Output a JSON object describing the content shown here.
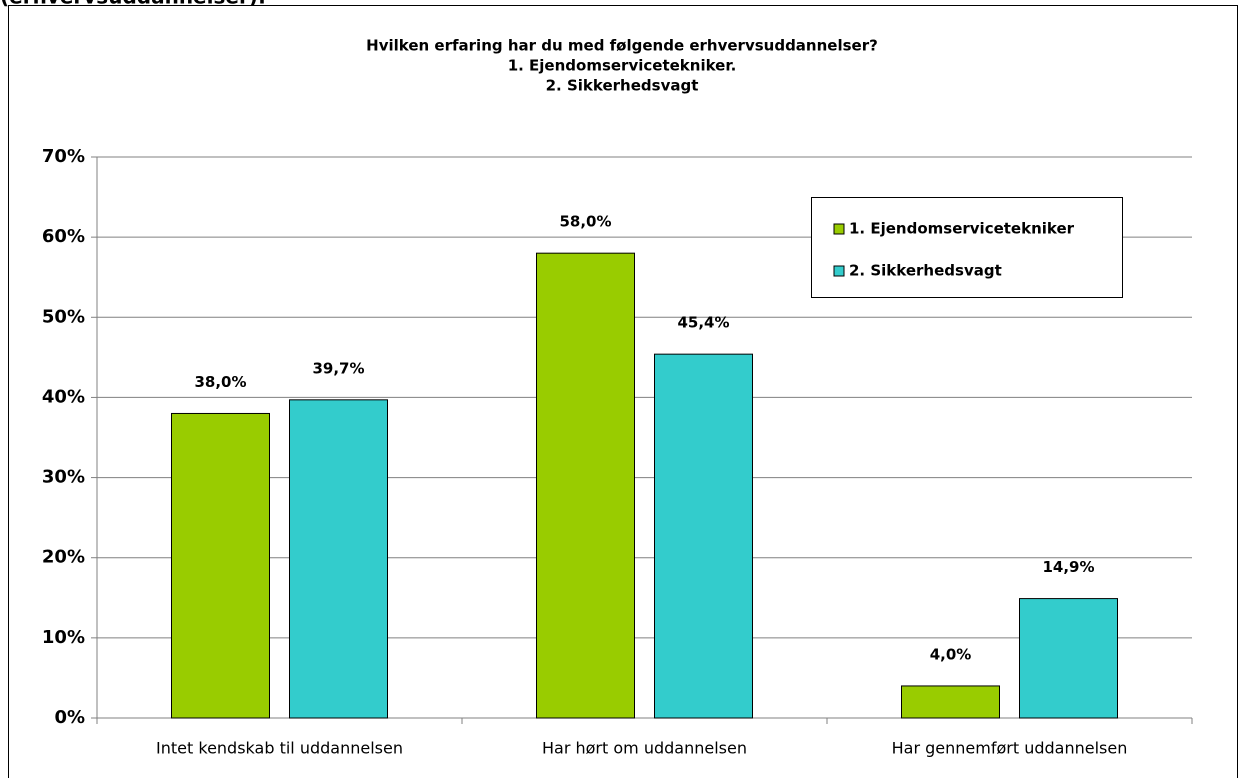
{
  "chart_data": {
    "type": "bar",
    "page_heading": "(erhvervsuddannelser):",
    "title": [
      "Hvilken erfaring har du med følgende erhvervsuddannelser?",
      "1. Ejendomservicetekniker.",
      "2. Sikkerhedsvagt"
    ],
    "categories": [
      "Intet kendskab til uddannelsen",
      "Har hørt om uddannelsen",
      "Har gennemført uddannelsen"
    ],
    "series": [
      {
        "name": "1. Ejendomservicetekniker",
        "color": "#99cc00",
        "values": [
          38.0,
          58.0,
          4.0
        ],
        "value_labels": [
          "38,0%",
          "58,0%",
          "4,0%"
        ]
      },
      {
        "name": "2. Sikkerhedsvagt",
        "color": "#33cccc",
        "values": [
          39.7,
          45.4,
          14.9
        ],
        "value_labels": [
          "39,7%",
          "45,4%",
          "14,9%"
        ]
      }
    ],
    "ylim": [
      0,
      70
    ],
    "yticks": [
      {
        "value": 0,
        "label": "0%"
      },
      {
        "value": 10,
        "label": "10%"
      },
      {
        "value": 20,
        "label": "20%"
      },
      {
        "value": 30,
        "label": "30%"
      },
      {
        "value": 40,
        "label": "40%"
      },
      {
        "value": 50,
        "label": "50%"
      },
      {
        "value": 60,
        "label": "60%"
      },
      {
        "value": 70,
        "label": "70%"
      }
    ],
    "grid": true,
    "legend": "upper right"
  }
}
